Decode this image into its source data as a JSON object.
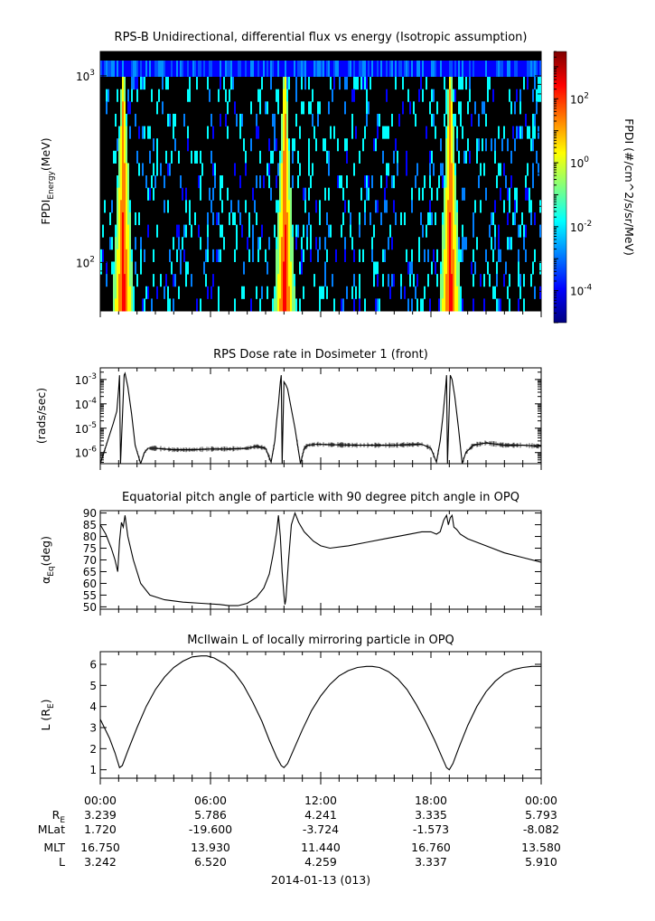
{
  "chart_data": [
    {
      "type": "heatmap",
      "title": "RPS-B  Unidirectional, differential flux vs energy (Isotropic assumption)",
      "ylabel": "FPDI",
      "ylabel_sub": "Energy",
      "ylabel_unit": "(MeV)",
      "yscale": "log",
      "ylim": [
        55,
        1350
      ],
      "yticks": [
        {
          "value": 100,
          "base": "10",
          "exp": "2"
        },
        {
          "value": 1000,
          "base": "10",
          "exp": "3"
        }
      ],
      "energy_channels": 20,
      "xlim": [
        0,
        24
      ],
      "peak_times_hr": [
        1.2,
        10.0,
        19.0
      ],
      "colorbar": {
        "label": "FPDI (#/cm^2/s/sr/MeV)",
        "scale": "log",
        "range": [
          1e-05,
          3000.0
        ],
        "ticks": [
          {
            "value": 0.0001,
            "base": "10",
            "exp": "-4"
          },
          {
            "value": 0.01,
            "base": "10",
            "exp": "-2"
          },
          {
            "value": 1,
            "base": "10",
            "exp": "0"
          },
          {
            "value": 100,
            "base": "10",
            "exp": "2"
          }
        ],
        "colors": [
          "#00007f",
          "#0000ff",
          "#0080ff",
          "#00ffff",
          "#80ff80",
          "#ffff00",
          "#ff8000",
          "#ff0000",
          "#7f0000"
        ]
      }
    },
    {
      "type": "line",
      "title": "RPS  Dose rate in Dosimeter 1 (front)",
      "ylabel": "(rads/sec)",
      "yscale": "log",
      "ylim": [
        3.5e-07,
        0.003
      ],
      "xlim": [
        0,
        24
      ],
      "yticks": [
        {
          "value": 1e-06,
          "base": "10",
          "exp": "-6"
        },
        {
          "value": 1e-05,
          "base": "10",
          "exp": "-5"
        },
        {
          "value": 0.0001,
          "base": "10",
          "exp": "-4"
        },
        {
          "value": 0.001,
          "base": "10",
          "exp": "-3"
        }
      ],
      "series": [
        {
          "x": [
            0.0,
            0.4,
            0.7,
            0.9,
            1.0,
            1.05,
            1.1,
            1.3,
            1.35,
            1.5,
            1.7,
            1.9,
            2.2,
            2.4,
            2.6,
            3.0,
            3.5,
            4.0,
            5.0,
            6.0,
            7.0,
            8.0,
            8.5,
            9.0,
            9.3,
            9.5,
            9.6,
            9.7,
            9.8,
            9.85,
            9.9,
            10.0,
            10.1,
            10.2,
            10.35,
            10.6,
            10.9,
            11.1,
            11.3,
            11.8,
            12.5,
            14.0,
            16.0,
            17.5,
            18.0,
            18.3,
            18.5,
            18.65,
            18.8,
            18.85,
            18.9,
            19.05,
            19.15,
            19.3,
            19.5,
            19.7,
            19.9,
            20.3,
            21.0,
            22.0,
            23.0,
            24.0
          ],
          "y": [
            3.5e-07,
            3e-06,
            1.5e-05,
            5e-05,
            0.0004,
            0.0015,
            3.5e-07,
            0.0015,
            0.0018,
            0.0005,
            4e-05,
            2e-06,
            3.5e-07,
            1e-06,
            1.5e-06,
            1.5e-06,
            1.4e-06,
            1.3e-06,
            1.3e-06,
            1.4e-06,
            1.4e-06,
            1.5e-06,
            1.8e-06,
            1.5e-06,
            4e-07,
            3e-06,
            2e-05,
            0.0001,
            0.0008,
            0.0015,
            3.5e-07,
            0.0008,
            0.0006,
            0.0004,
            0.0001,
            1e-05,
            3.5e-07,
            1.5e-06,
            2e-06,
            2.2e-06,
            2.1e-06,
            2e-06,
            2e-06,
            2.2e-06,
            1.5e-06,
            4e-07,
            3e-06,
            3e-05,
            0.0005,
            0.0015,
            3.5e-07,
            0.0015,
            0.001,
            0.0002,
            1e-05,
            3.5e-07,
            1e-06,
            2e-06,
            2.5e-06,
            2e-06,
            2e-06,
            1.8e-06
          ]
        }
      ]
    },
    {
      "type": "line",
      "title": "Equatorial pitch angle of particle with 90 degree pitch angle in OPQ",
      "ylabel": "α",
      "ylabel_sub": "Eq",
      "ylabel_unit": "(deg)",
      "ylim": [
        49,
        91
      ],
      "xlim": [
        0,
        24
      ],
      "yticks": [
        50,
        55,
        60,
        65,
        70,
        75,
        80,
        85,
        90
      ],
      "series": [
        {
          "x": [
            0.0,
            0.3,
            0.6,
            0.8,
            0.95,
            1.05,
            1.15,
            1.25,
            1.35,
            1.5,
            1.8,
            2.2,
            2.7,
            3.5,
            4.5,
            5.5,
            6.5,
            7.0,
            7.5,
            8.0,
            8.5,
            8.9,
            9.2,
            9.4,
            9.6,
            9.7,
            9.8,
            9.9,
            10.0,
            10.05,
            10.1,
            10.25,
            10.4,
            10.6,
            10.8,
            11.1,
            11.6,
            12.0,
            12.5,
            13.5,
            14.5,
            15.5,
            16.5,
            17.5,
            18.0,
            18.3,
            18.5,
            18.7,
            18.85,
            18.95,
            19.05,
            19.15,
            19.25,
            19.4,
            19.6,
            20.0,
            21.0,
            22.0,
            23.0,
            24.0
          ],
          "y": [
            85,
            81,
            75,
            70,
            65,
            78,
            86,
            84,
            89,
            80,
            70,
            60,
            55,
            53,
            52,
            51.5,
            51,
            50.5,
            50.5,
            51.5,
            54,
            58,
            64,
            72,
            82,
            89,
            80,
            65,
            55,
            51,
            53,
            70,
            85,
            90,
            86,
            82,
            78,
            76,
            75,
            76,
            77.5,
            79,
            80.5,
            82,
            82,
            81,
            82,
            87,
            89,
            85,
            88,
            89,
            84,
            83,
            81,
            79,
            76,
            73,
            71,
            69
          ]
        }
      ]
    },
    {
      "type": "line",
      "title": "McIlwain L of locally mirroring particle in OPQ",
      "ylabel": "L (R",
      "ylabel_sub": "E",
      "ylabel_unit": ")",
      "ylim": [
        0.6,
        6.6
      ],
      "xlim": [
        0,
        24
      ],
      "yticks": [
        1,
        2,
        3,
        4,
        5,
        6
      ],
      "series": [
        {
          "x": [
            0.0,
            0.5,
            0.8,
            1.05,
            1.2,
            1.5,
            2.0,
            2.5,
            3.0,
            3.5,
            4.0,
            4.5,
            5.0,
            5.5,
            5.8,
            6.2,
            6.8,
            7.3,
            7.8,
            8.3,
            8.8,
            9.2,
            9.6,
            9.85,
            10.0,
            10.2,
            10.5,
            11.0,
            11.5,
            12.0,
            12.5,
            13.0,
            13.5,
            14.0,
            14.5,
            14.8,
            15.2,
            15.7,
            16.2,
            16.7,
            17.2,
            17.7,
            18.2,
            18.6,
            18.85,
            19.0,
            19.2,
            19.5,
            20.0,
            20.5,
            21.0,
            21.5,
            22.0,
            22.5,
            23.0,
            23.5,
            24.0
          ],
          "y": [
            3.4,
            2.5,
            1.8,
            1.1,
            1.2,
            1.9,
            3.0,
            4.0,
            4.8,
            5.4,
            5.85,
            6.15,
            6.35,
            6.4,
            6.4,
            6.3,
            6.0,
            5.6,
            5.0,
            4.2,
            3.3,
            2.4,
            1.6,
            1.2,
            1.1,
            1.3,
            1.9,
            2.9,
            3.8,
            4.5,
            5.05,
            5.45,
            5.7,
            5.85,
            5.9,
            5.9,
            5.85,
            5.65,
            5.3,
            4.8,
            4.1,
            3.3,
            2.4,
            1.6,
            1.1,
            1.0,
            1.3,
            2.0,
            3.1,
            4.0,
            4.7,
            5.2,
            5.55,
            5.75,
            5.85,
            5.9,
            5.9
          ]
        }
      ]
    }
  ],
  "x_axis": {
    "major_labels": [
      "00:00",
      "06:00",
      "12:00",
      "18:00",
      "00:00"
    ],
    "major_hours": [
      0,
      6,
      12,
      18,
      24
    ],
    "minor_step_hr": 1,
    "date_label": "2014-01-13 (013)"
  },
  "ephemeris": [
    {
      "label": "R",
      "label_sub": "E",
      "values": [
        "3.239",
        "5.786",
        "4.241",
        "3.335",
        "5.793"
      ]
    },
    {
      "label": "MLat",
      "label_sub": "",
      "values": [
        "1.720",
        "-19.600",
        "-3.724",
        "-1.573",
        "-8.082"
      ]
    },
    {
      "label": "MLT",
      "label_sub": "",
      "values": [
        "16.750",
        "13.930",
        "11.440",
        "16.760",
        "13.580"
      ]
    },
    {
      "label": "L",
      "label_sub": "",
      "values": [
        "3.242",
        "6.520",
        "4.259",
        "3.337",
        "5.910"
      ]
    }
  ]
}
